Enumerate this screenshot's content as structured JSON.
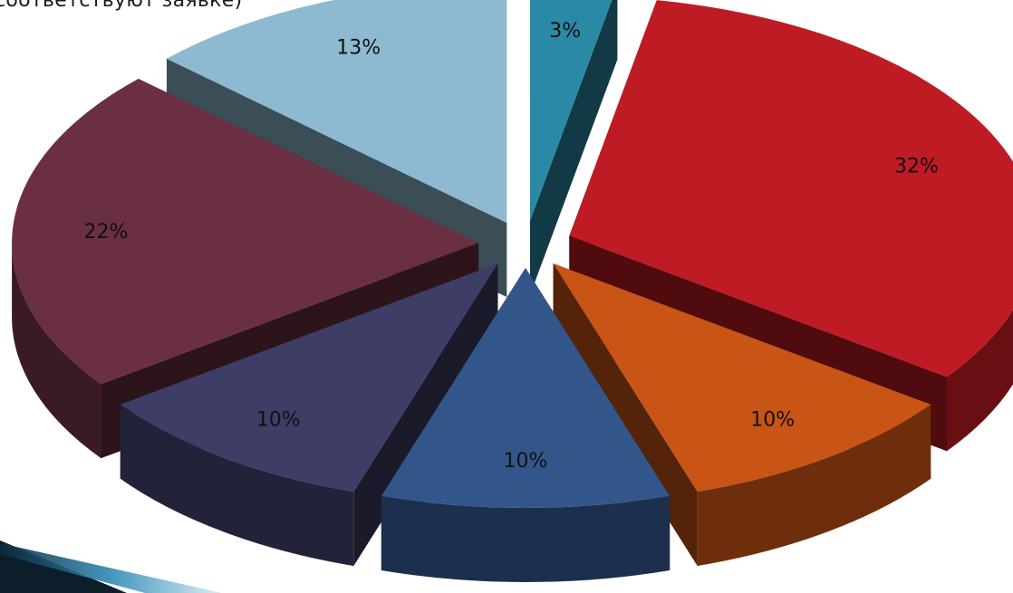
{
  "title_fragment": "соответствуют заявке)",
  "chart_data": {
    "type": "pie",
    "style": "3d-exploded",
    "title": "",
    "slices": [
      {
        "label": "3%",
        "value": 3,
        "color": "#2a8aa6"
      },
      {
        "label": "32%",
        "value": 32,
        "color": "#bf1b24"
      },
      {
        "label": "10%",
        "value": 10,
        "color": "#c85416"
      },
      {
        "label": "10%",
        "value": 10,
        "color": "#33568a"
      },
      {
        "label": "10%",
        "value": 10,
        "color": "#3e3d66"
      },
      {
        "label": "22%",
        "value": 22,
        "color": "#6a2f40"
      },
      {
        "label": "13%",
        "value": 13,
        "color": "#8dbad0"
      }
    ],
    "legend": "none"
  }
}
